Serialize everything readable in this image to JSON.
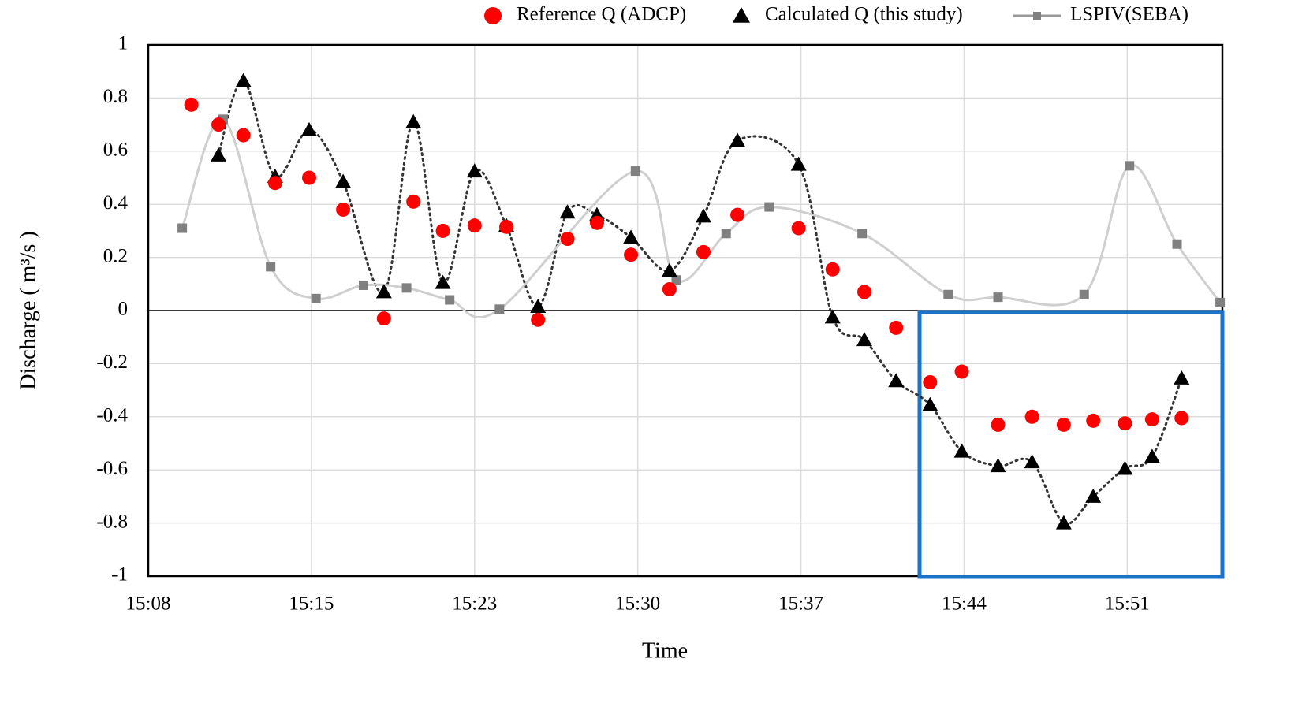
{
  "chart_data": {
    "type": "scatter",
    "xlabel": "Time",
    "ylabel": "Discharge ( m³/s )",
    "xlim": [
      8.6,
      56
    ],
    "ylim": [
      -1,
      1
    ],
    "xticks": [
      {
        "value": 8.6,
        "label": "15:08"
      },
      {
        "value": 15.8,
        "label": "15:15"
      },
      {
        "value": 23.0,
        "label": "15:23"
      },
      {
        "value": 30.2,
        "label": "15:30"
      },
      {
        "value": 37.4,
        "label": "15:37"
      },
      {
        "value": 44.6,
        "label": "15:44"
      },
      {
        "value": 51.8,
        "label": "15:51"
      }
    ],
    "yticks": [
      -1,
      -0.8,
      -0.6,
      -0.4,
      -0.2,
      0,
      0.2,
      0.4,
      0.6,
      0.8,
      1
    ],
    "grid": true,
    "legend": "top",
    "series": [
      {
        "name": "Reference Q (ADCP)",
        "color": "#ff0000",
        "marker": "circle",
        "line": "none",
        "x": [
          10.5,
          11.7,
          12.8,
          14.2,
          15.7,
          17.2,
          19.0,
          20.3,
          21.6,
          23.0,
          24.4,
          25.8,
          27.1,
          28.4,
          29.9,
          31.6,
          33.1,
          34.6,
          37.3,
          38.8,
          40.2,
          41.6,
          43.1,
          44.5,
          46.1,
          47.6,
          49.0,
          50.3,
          51.7,
          52.9,
          54.2
        ],
        "values": [
          0.775,
          0.7,
          0.66,
          0.48,
          0.5,
          0.38,
          -0.03,
          0.41,
          0.3,
          0.32,
          0.315,
          -0.035,
          0.27,
          0.33,
          0.21,
          0.08,
          0.22,
          0.36,
          0.31,
          0.155,
          0.07,
          -0.065,
          -0.27,
          -0.23,
          -0.43,
          -0.4,
          -0.43,
          -0.415,
          -0.425,
          -0.41,
          -0.405
        ]
      },
      {
        "name": "Calculated Q (this study)",
        "color": "#000000",
        "marker": "triangle",
        "line": "dotted",
        "line_color": "#333333",
        "x": [
          11.7,
          12.8,
          14.2,
          15.7,
          17.2,
          19.0,
          20.3,
          21.6,
          23.0,
          24.4,
          25.8,
          27.1,
          28.4,
          29.9,
          31.6,
          33.1,
          34.6,
          37.3,
          38.8,
          40.2,
          41.6,
          43.1,
          44.5,
          46.1,
          47.6,
          49.0,
          50.3,
          51.7,
          52.9,
          54.2
        ],
        "values": [
          0.585,
          0.865,
          0.505,
          0.68,
          0.485,
          0.07,
          0.71,
          0.105,
          0.525,
          0.32,
          0.015,
          0.37,
          0.36,
          0.275,
          0.15,
          0.355,
          0.64,
          0.55,
          -0.025,
          -0.11,
          -0.265,
          -0.355,
          -0.53,
          -0.585,
          -0.57,
          -0.8,
          -0.7,
          -0.595,
          -0.55,
          -0.255
        ]
      },
      {
        "name": "LSPIV(SEBA)",
        "color": "#808080",
        "marker": "square",
        "line": "solid",
        "line_color": "#cfcfcf",
        "x": [
          10.1,
          11.9,
          14.0,
          16.0,
          18.1,
          20.0,
          21.9,
          24.1,
          30.1,
          31.9,
          34.1,
          36.0,
          40.1,
          43.9,
          46.1,
          49.9,
          51.9,
          54.0,
          55.9
        ],
        "values": [
          0.31,
          0.72,
          0.165,
          0.045,
          0.095,
          0.085,
          0.04,
          0.005,
          0.525,
          0.115,
          0.29,
          0.39,
          0.29,
          0.06,
          0.05,
          0.06,
          0.545,
          0.25,
          0.03
        ]
      }
    ]
  }
}
